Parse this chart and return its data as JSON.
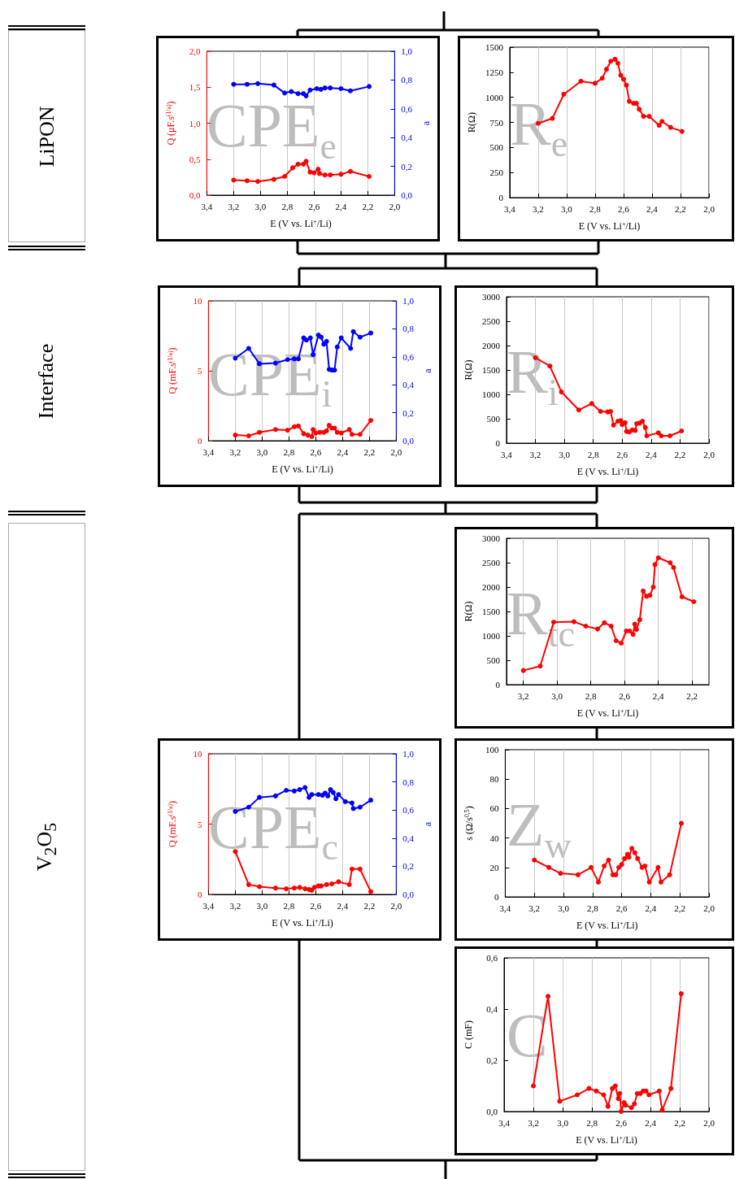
{
  "chart_data": [
    {
      "type": "other",
      "annotations": [
        "LiPON",
        "Interface",
        "V$_{2}$O$_{5}$"
      ]
    },
    {
      "type": "line",
      "xlabel": "E (V vs. Li$^{+}$/Li)",
      "ylabel": "Q (μF.s$^{(1/a)}$)",
      "y2label": "a",
      "annotations": [
        "CPE$_{e}$"
      ],
      "grid": "x",
      "marker": "circle",
      "xlim": [
        3.4,
        2.0
      ],
      "xticks": [
        {
          "value": 3.4,
          "label": "3,4"
        },
        {
          "value": 3.2,
          "label": "3,2"
        },
        {
          "value": 3.0,
          "label": "3,0"
        },
        {
          "value": 2.8,
          "label": "2,8"
        },
        {
          "value": 2.6,
          "label": "2,6"
        },
        {
          "value": 2.4,
          "label": "2,4"
        },
        {
          "value": 2.2,
          "label": "2,2"
        },
        {
          "value": 2.0,
          "label": "2,0"
        }
      ],
      "ylim": [
        0,
        2
      ],
      "yticks": [
        {
          "value": 0,
          "label": "0,0"
        },
        {
          "value": 0.5,
          "label": "0,5"
        },
        {
          "value": 1,
          "label": "1,0"
        },
        {
          "value": 1.5,
          "label": "1,5"
        },
        {
          "value": 2,
          "label": "2,0"
        }
      ],
      "y2lim": [
        0,
        1
      ],
      "y2ticks": [
        {
          "value": 0,
          "label": "0,0"
        },
        {
          "value": 0.2,
          "label": "0,2"
        },
        {
          "value": 0.4,
          "label": "0,4"
        },
        {
          "value": 0.6,
          "label": "0,6"
        },
        {
          "value": 0.8,
          "label": "0,8"
        },
        {
          "value": 1,
          "label": "1,0"
        }
      ],
      "series": [
        {
          "color": "#ff0000",
          "x": [
            3.2,
            3.1,
            3.02,
            2.9,
            2.82,
            2.76,
            2.72,
            2.68,
            2.66,
            2.63,
            2.6,
            2.57,
            2.56,
            2.52,
            2.48,
            2.4,
            2.33,
            2.19
          ],
          "values": [
            0.21,
            0.2,
            0.19,
            0.22,
            0.26,
            0.38,
            0.43,
            0.43,
            0.47,
            0.32,
            0.31,
            0.36,
            0.3,
            0.28,
            0.28,
            0.29,
            0.33,
            0.26
          ]
        },
        {
          "color": "#0000ff",
          "axis": "y2",
          "x": [
            3.2,
            3.1,
            3.02,
            2.9,
            2.82,
            2.77,
            2.72,
            2.68,
            2.66,
            2.63,
            2.58,
            2.55,
            2.52,
            2.48,
            2.4,
            2.33,
            2.19
          ],
          "values": [
            0.77,
            0.77,
            0.775,
            0.765,
            0.71,
            0.72,
            0.705,
            0.705,
            0.69,
            0.73,
            0.74,
            0.735,
            0.745,
            0.745,
            0.74,
            0.725,
            0.755
          ]
        }
      ]
    },
    {
      "type": "line",
      "xlabel": "E (V vs. Li$^{+}$/Li)",
      "ylabel": "R(Ω)",
      "annotations": [
        "R$_{e}$"
      ],
      "grid": "x",
      "marker": "circle",
      "xlim": [
        3.4,
        2.0
      ],
      "xticks": [
        {
          "value": 3.4,
          "label": "3,4"
        },
        {
          "value": 3.2,
          "label": "3,2"
        },
        {
          "value": 3.0,
          "label": "3,0"
        },
        {
          "value": 2.8,
          "label": "2,8"
        },
        {
          "value": 2.6,
          "label": "2,6"
        },
        {
          "value": 2.4,
          "label": "2,4"
        },
        {
          "value": 2.2,
          "label": "2,2"
        },
        {
          "value": 2.0,
          "label": "2,0"
        }
      ],
      "ylim": [
        0,
        1500
      ],
      "yticks": [
        0,
        250,
        500,
        750,
        1000,
        1250,
        1500
      ],
      "series": [
        {
          "color": "#ff0000",
          "x": [
            3.2,
            3.1,
            3.02,
            2.9,
            2.8,
            2.75,
            2.72,
            2.69,
            2.66,
            2.64,
            2.62,
            2.6,
            2.58,
            2.56,
            2.53,
            2.51,
            2.49,
            2.46,
            2.42,
            2.35,
            2.33,
            2.27,
            2.19
          ],
          "values": [
            740,
            790,
            1030,
            1160,
            1140,
            1190,
            1280,
            1360,
            1380,
            1340,
            1220,
            1180,
            1120,
            960,
            940,
            940,
            880,
            810,
            810,
            720,
            760,
            700,
            660
          ]
        }
      ]
    },
    {
      "type": "line",
      "xlabel": "E (V vs. Li$^{+}$/Li)",
      "ylabel": "Q (mF.s$^{(1/a)}$)",
      "y2label": "a",
      "annotations": [
        "CPE$_{i}$"
      ],
      "grid": "x",
      "marker": "circle",
      "xlim": [
        3.4,
        2.0
      ],
      "xticks": [
        {
          "value": 3.4,
          "label": "3,4"
        },
        {
          "value": 3.2,
          "label": "3,2"
        },
        {
          "value": 3.0,
          "label": "3,0"
        },
        {
          "value": 2.8,
          "label": "2,8"
        },
        {
          "value": 2.6,
          "label": "2,6"
        },
        {
          "value": 2.4,
          "label": "2,4"
        },
        {
          "value": 2.2,
          "label": "2,2"
        },
        {
          "value": 2.0,
          "label": "2,0"
        }
      ],
      "ylim": [
        0,
        10
      ],
      "yticks": [
        0,
        5,
        10
      ],
      "y2lim": [
        0,
        1
      ],
      "y2ticks": [
        {
          "value": 0,
          "label": "0,0"
        },
        {
          "value": 0.2,
          "label": "0,2"
        },
        {
          "value": 0.4,
          "label": "0,4"
        },
        {
          "value": 0.6,
          "label": "0,6"
        },
        {
          "value": 0.8,
          "label": "0,8"
        },
        {
          "value": 1,
          "label": "1,0"
        }
      ],
      "series": [
        {
          "color": "#ff0000",
          "x": [
            3.2,
            3.1,
            3.02,
            2.9,
            2.81,
            2.76,
            2.73,
            2.69,
            2.66,
            2.63,
            2.62,
            2.6,
            2.57,
            2.54,
            2.52,
            2.5,
            2.48,
            2.46,
            2.44,
            2.41,
            2.35,
            2.33,
            2.27,
            2.19
          ],
          "values": [
            0.4,
            0.35,
            0.6,
            0.8,
            0.75,
            1.0,
            1.05,
            0.5,
            0.4,
            0.3,
            0.8,
            0.55,
            0.6,
            0.6,
            0.7,
            1.1,
            0.9,
            0.9,
            0.6,
            0.55,
            0.8,
            0.45,
            0.45,
            1.45
          ]
        },
        {
          "color": "#0000ff",
          "axis": "y2",
          "x": [
            3.2,
            3.1,
            3.02,
            2.9,
            2.81,
            2.76,
            2.73,
            2.69,
            2.67,
            2.64,
            2.62,
            2.58,
            2.56,
            2.54,
            2.52,
            2.5,
            2.48,
            2.46,
            2.44,
            2.41,
            2.34,
            2.32,
            2.27,
            2.19
          ],
          "values": [
            0.59,
            0.66,
            0.55,
            0.555,
            0.58,
            0.585,
            0.585,
            0.735,
            0.72,
            0.735,
            0.615,
            0.755,
            0.74,
            0.69,
            0.71,
            0.51,
            0.505,
            0.505,
            0.67,
            0.735,
            0.66,
            0.78,
            0.74,
            0.77
          ]
        }
      ]
    },
    {
      "type": "line",
      "xlabel": "E (V vs. Li$^{+}$/Li)",
      "ylabel": "R(Ω)",
      "annotations": [
        "R$_{i}$"
      ],
      "grid": "x",
      "marker": "circle",
      "xlim": [
        3.4,
        2.0
      ],
      "xticks": [
        {
          "value": 3.4,
          "label": "3,4"
        },
        {
          "value": 3.2,
          "label": "3,2"
        },
        {
          "value": 3.0,
          "label": "3,0"
        },
        {
          "value": 2.8,
          "label": "2,8"
        },
        {
          "value": 2.6,
          "label": "2,6"
        },
        {
          "value": 2.4,
          "label": "2,4"
        },
        {
          "value": 2.2,
          "label": "2,2"
        },
        {
          "value": 2.0,
          "label": "2,0"
        }
      ],
      "ylim": [
        0,
        3000
      ],
      "yticks": [
        0,
        500,
        1000,
        1500,
        2000,
        2500,
        3000
      ],
      "series": [
        {
          "color": "#ff0000",
          "x": [
            3.2,
            3.1,
            3.02,
            2.9,
            2.81,
            2.75,
            2.7,
            2.68,
            2.66,
            2.63,
            2.61,
            2.6,
            2.58,
            2.57,
            2.55,
            2.53,
            2.51,
            2.5,
            2.48,
            2.46,
            2.44,
            2.43,
            2.35,
            2.33,
            2.27,
            2.19
          ],
          "values": [
            1750,
            1580,
            1050,
            680,
            810,
            650,
            640,
            650,
            370,
            450,
            460,
            380,
            420,
            240,
            230,
            270,
            260,
            400,
            410,
            450,
            320,
            150,
            210,
            150,
            150,
            250
          ]
        }
      ]
    },
    {
      "type": "line",
      "xlabel": "E (V vs. Li$^{+}$/Li)",
      "ylabel": "R(Ω)",
      "annotations": [
        "R$_{tc}$"
      ],
      "grid": "x",
      "marker": "circle",
      "xlim": [
        3.3,
        2.1
      ],
      "xticks": [
        {
          "value": 3.2,
          "label": "3,2"
        },
        {
          "value": 3.0,
          "label": "3,0"
        },
        {
          "value": 2.8,
          "label": "2,8"
        },
        {
          "value": 2.6,
          "label": "2,6"
        },
        {
          "value": 2.4,
          "label": "2,4"
        },
        {
          "value": 2.2,
          "label": "2,2"
        }
      ],
      "ylim": [
        0,
        3000
      ],
      "yticks": [
        0,
        500,
        1000,
        1500,
        2000,
        2500,
        3000
      ],
      "series": [
        {
          "color": "#ff0000",
          "x": [
            3.2,
            3.1,
            3.02,
            2.9,
            2.83,
            2.76,
            2.72,
            2.68,
            2.65,
            2.62,
            2.59,
            2.57,
            2.55,
            2.54,
            2.53,
            2.51,
            2.49,
            2.47,
            2.45,
            2.43,
            2.42,
            2.4,
            2.33,
            2.31,
            2.26,
            2.19
          ],
          "values": [
            290,
            380,
            1280,
            1290,
            1200,
            1140,
            1270,
            1200,
            900,
            850,
            1100,
            1100,
            1030,
            1240,
            1130,
            1330,
            1920,
            1810,
            1830,
            2000,
            2460,
            2600,
            2500,
            2400,
            1800,
            1700
          ]
        }
      ]
    },
    {
      "type": "line",
      "xlabel": "E (V vs. Li$^{+}$/Li)",
      "ylabel": "Q (mF.s$^{(1/a)}$)",
      "y2label": "a",
      "annotations": [
        "CPE$_{c}$"
      ],
      "grid": "x",
      "marker": "circle",
      "xlim": [
        3.4,
        2.0
      ],
      "xticks": [
        {
          "value": 3.4,
          "label": "3,4"
        },
        {
          "value": 3.2,
          "label": "3,2"
        },
        {
          "value": 3.0,
          "label": "3,0"
        },
        {
          "value": 2.8,
          "label": "2,8"
        },
        {
          "value": 2.6,
          "label": "2,6"
        },
        {
          "value": 2.4,
          "label": "2,4"
        },
        {
          "value": 2.2,
          "label": "2,2"
        },
        {
          "value": 2.0,
          "label": "2,0"
        }
      ],
      "ylim": [
        0,
        10
      ],
      "yticks": [
        0,
        5,
        10
      ],
      "y2lim": [
        0,
        1
      ],
      "y2ticks": [
        {
          "value": 0,
          "label": "0,0"
        },
        {
          "value": 0.2,
          "label": "0,2"
        },
        {
          "value": 0.4,
          "label": "0,4"
        },
        {
          "value": 0.6,
          "label": "0,6"
        },
        {
          "value": 0.8,
          "label": "0,8"
        },
        {
          "value": 1,
          "label": "1,0"
        }
      ],
      "series": [
        {
          "color": "#ff0000",
          "x": [
            3.2,
            3.1,
            3.02,
            2.9,
            2.82,
            2.76,
            2.72,
            2.68,
            2.65,
            2.63,
            2.61,
            2.58,
            2.56,
            2.52,
            2.48,
            2.43,
            2.35,
            2.33,
            2.27,
            2.19
          ],
          "values": [
            3.05,
            0.7,
            0.55,
            0.45,
            0.4,
            0.45,
            0.5,
            0.4,
            0.35,
            0.3,
            0.5,
            0.6,
            0.6,
            0.7,
            0.75,
            0.9,
            0.7,
            1.8,
            1.8,
            0.2
          ]
        },
        {
          "color": "#0000ff",
          "axis": "y2",
          "x": [
            3.2,
            3.1,
            3.02,
            2.9,
            2.82,
            2.76,
            2.72,
            2.68,
            2.65,
            2.63,
            2.58,
            2.55,
            2.53,
            2.51,
            2.49,
            2.47,
            2.45,
            2.43,
            2.38,
            2.33,
            2.32,
            2.27,
            2.19
          ],
          "values": [
            0.59,
            0.62,
            0.69,
            0.7,
            0.74,
            0.735,
            0.745,
            0.76,
            0.69,
            0.71,
            0.71,
            0.705,
            0.72,
            0.7,
            0.745,
            0.725,
            0.68,
            0.71,
            0.66,
            0.65,
            0.61,
            0.62,
            0.67
          ]
        }
      ]
    },
    {
      "type": "line",
      "xlabel": "E (V vs. Li$^{+}$/Li)",
      "ylabel": "s (Ω/s$^{0,5}$)",
      "annotations": [
        "Z$_{w}$"
      ],
      "grid": "x",
      "marker": "circle",
      "xlim": [
        3.4,
        2.0
      ],
      "xticks": [
        {
          "value": 3.4,
          "label": "3,4"
        },
        {
          "value": 3.2,
          "label": "3,2"
        },
        {
          "value": 3.0,
          "label": "3,0"
        },
        {
          "value": 2.8,
          "label": "2,8"
        },
        {
          "value": 2.6,
          "label": "2,6"
        },
        {
          "value": 2.4,
          "label": "2,4"
        },
        {
          "value": 2.2,
          "label": "2,2"
        },
        {
          "value": 2.0,
          "label": "2,0"
        }
      ],
      "ylim": [
        0,
        100
      ],
      "yticks": [
        0,
        20,
        40,
        60,
        80,
        100
      ],
      "series": [
        {
          "color": "#ff0000",
          "x": [
            3.2,
            3.1,
            3.02,
            2.9,
            2.81,
            2.76,
            2.72,
            2.69,
            2.66,
            2.64,
            2.62,
            2.6,
            2.58,
            2.56,
            2.55,
            2.53,
            2.51,
            2.49,
            2.46,
            2.44,
            2.41,
            2.35,
            2.33,
            2.27,
            2.19
          ],
          "values": [
            25,
            20,
            16,
            15,
            20,
            10,
            21,
            25,
            15,
            15,
            20,
            22,
            26,
            29,
            27,
            33,
            30,
            26,
            20,
            21,
            10,
            20,
            10,
            15,
            50
          ]
        }
      ]
    },
    {
      "type": "line",
      "xlabel": "E (V vs. Li$^{+}$/Li)",
      "ylabel": "C (mF)",
      "annotations": [
        "C"
      ],
      "grid": "x",
      "marker": "circle",
      "xlim": [
        3.4,
        2.0
      ],
      "xticks": [
        {
          "value": 3.4,
          "label": "3,4"
        },
        {
          "value": 3.2,
          "label": "3,2"
        },
        {
          "value": 3.0,
          "label": "3,0"
        },
        {
          "value": 2.8,
          "label": "2,8"
        },
        {
          "value": 2.6,
          "label": "2,6"
        },
        {
          "value": 2.4,
          "label": "2,4"
        },
        {
          "value": 2.2,
          "label": "2,2"
        },
        {
          "value": 2.0,
          "label": "2,0"
        }
      ],
      "ylim": [
        0,
        0.6
      ],
      "yticks": [
        {
          "value": 0,
          "label": "0,0"
        },
        {
          "value": 0.2,
          "label": "0,2"
        },
        {
          "value": 0.4,
          "label": "0,4"
        },
        {
          "value": 0.6,
          "label": "0,6"
        }
      ],
      "series": [
        {
          "color": "#ff0000",
          "x": [
            3.2,
            3.1,
            3.02,
            2.9,
            2.82,
            2.77,
            2.72,
            2.69,
            2.66,
            2.64,
            2.62,
            2.61,
            2.6,
            2.58,
            2.57,
            2.53,
            2.51,
            2.49,
            2.47,
            2.45,
            2.43,
            2.41,
            2.34,
            2.32,
            2.26,
            2.19
          ],
          "values": [
            0.1,
            0.45,
            0.04,
            0.065,
            0.09,
            0.08,
            0.065,
            0.02,
            0.09,
            0.1,
            0.05,
            0.07,
            0.0,
            0.035,
            0.025,
            0.015,
            0.03,
            0.07,
            0.07,
            0.08,
            0.08,
            0.065,
            0.08,
            0.005,
            0.09,
            0.46
          ]
        }
      ]
    }
  ]
}
